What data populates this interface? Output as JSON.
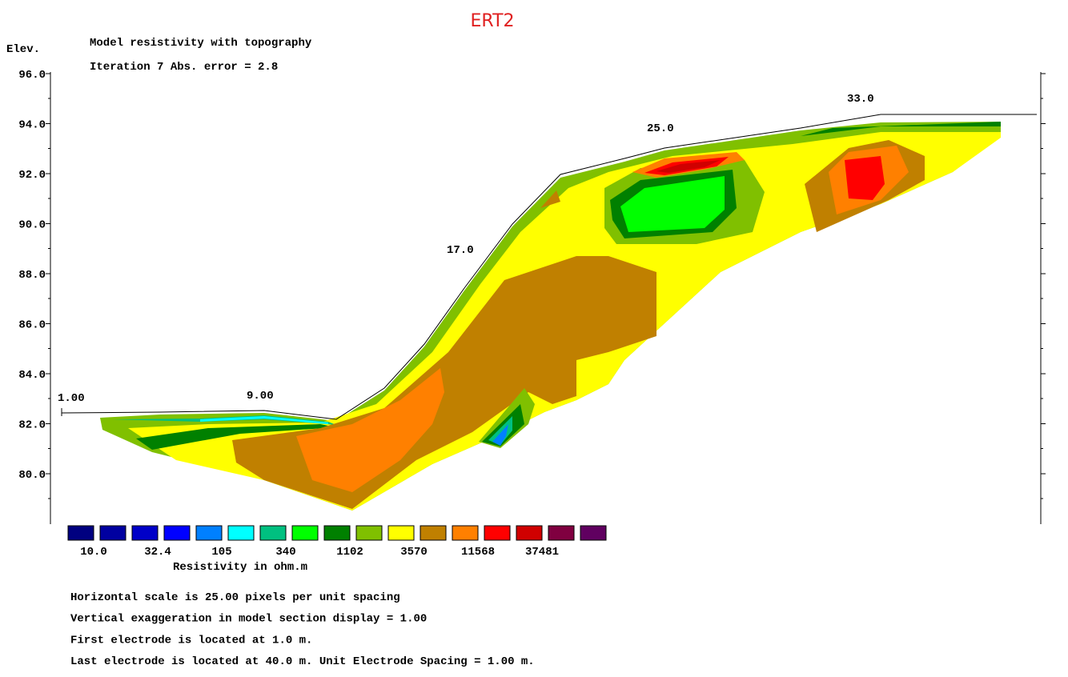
{
  "title": "ERT2",
  "header": {
    "elev_label": "Elev.",
    "line1": "Model resistivity with topography",
    "line2": "Iteration 7 Abs. error = 2.8"
  },
  "y_axis": {
    "ticks": [
      "96.0",
      "94.0",
      "92.0",
      "90.0",
      "88.0",
      "86.0",
      "84.0",
      "82.0",
      "80.0"
    ]
  },
  "electrode_labels": [
    "1.00",
    "9.00",
    "17.0",
    "25.0",
    "33.0"
  ],
  "legend": {
    "colors": [
      "#000080",
      "#0000a0",
      "#0000c8",
      "#0000ff",
      "#0080ff",
      "#00ffff",
      "#00c080",
      "#00ff00",
      "#008000",
      "#80c000",
      "#ffff00",
      "#c08000",
      "#ff8000",
      "#ff0000",
      "#d00000",
      "#800040",
      "#600060"
    ],
    "labels": [
      "10.0",
      "32.4",
      "105",
      "340",
      "1102",
      "3570",
      "11568",
      "37481"
    ],
    "caption": "Resistivity in ohm.m"
  },
  "footer": [
    "Horizontal scale is 25.00 pixels per unit spacing",
    "Vertical exaggeration in model section display = 1.00",
    "First electrode is located at 1.0  m.",
    "Last electrode is located at 40.0 m.    Unit Electrode Spacing = 1.00 m."
  ]
}
